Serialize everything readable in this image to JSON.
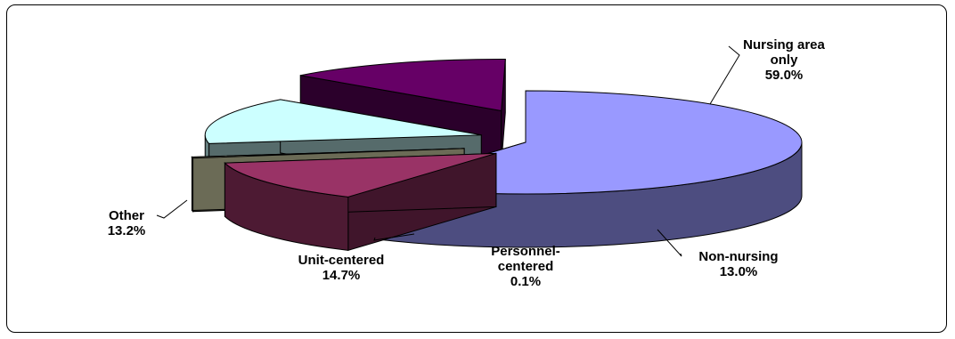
{
  "chart_data": {
    "type": "pie",
    "title": "",
    "slices": [
      {
        "label_lines": [
          "Nursing area",
          "only"
        ],
        "value": 59.0,
        "value_text": "59.0%",
        "color": "#9999FF"
      },
      {
        "label_lines": [
          "Non-nursing"
        ],
        "value": 13.0,
        "value_text": "13.0%",
        "color": "#993366"
      },
      {
        "label_lines": [
          "Personnel-",
          "centered"
        ],
        "value": 0.1,
        "value_text": "0.1%",
        "color": "#FFFFCC"
      },
      {
        "label_lines": [
          "Unit-centered"
        ],
        "value": 14.7,
        "value_text": "14.7%",
        "color": "#CCFFFF"
      },
      {
        "label_lines": [
          "Other"
        ],
        "value": 13.2,
        "value_text": "13.2%",
        "color": "#660066"
      }
    ],
    "legend": "none",
    "style": "3d-exploded-pie"
  }
}
